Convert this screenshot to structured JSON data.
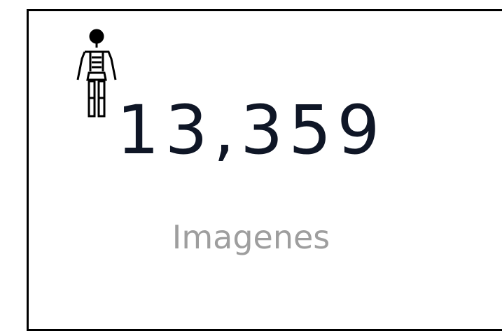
{
  "card": {
    "value": "13,359",
    "label": "Imagenes"
  }
}
